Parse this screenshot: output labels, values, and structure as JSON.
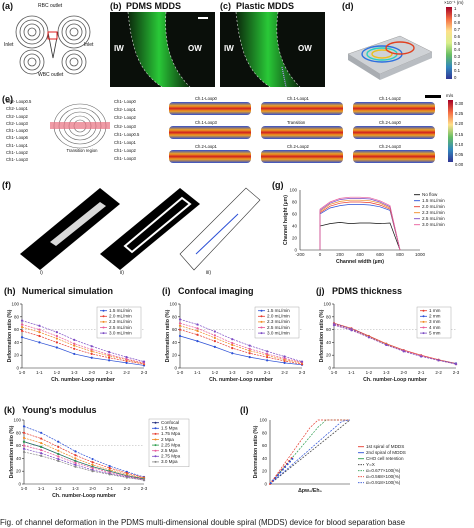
{
  "panels": {
    "a": {
      "label": "(a)",
      "rbc": "RBC outlet",
      "inlet_l": "Inlet",
      "inlet_r": "Inlet",
      "wbc": "WBC outlet"
    },
    "b": {
      "label": "(b)",
      "title": "PDMS MDDS",
      "iw": "IW",
      "ow": "OW"
    },
    "c": {
      "label": "(c)",
      "title": "Plastic MDDS",
      "iw": "IW",
      "ow": "OW"
    },
    "d": {
      "label": "(d)",
      "scale_unit": "×10⁻¹ (m)",
      "ticks": [
        "1",
        "0.9",
        "0.8",
        "0.7",
        "0.6",
        "0.5",
        "0.4",
        "0.3",
        "0.2",
        "0.1",
        "0"
      ]
    },
    "e": {
      "label": "(e)",
      "unit": "m/s",
      "left_labels": [
        "Ch2- Loop0.5",
        "Ch2- Loop1",
        "Ch2- Loop2",
        "Ch2- Loop3",
        "Ch1- Loop0",
        "Ch1- Loop6",
        "Ch1- Loop1",
        "Ch1- Loop2",
        "Ch1- Loop3"
      ],
      "right_labels": [
        "Ch1- Loop0",
        "Ch2- Loop1",
        "Ch2- Loop2",
        "Ch2- Loop3",
        "Ch1- Loop0.5",
        "Ch1- Loop1",
        "Ch1- Loop2",
        "Ch1- Loop3"
      ],
      "region": "Transition region",
      "cells": [
        "Ch.1-Loop0",
        "Ch.1-Loop1",
        "Ch.1-Loop2",
        "Ch.1-Loop3",
        "Transition",
        "Ch.2-Loop0",
        "Ch.2-Loop1",
        "Ch.2-Loop2",
        "Ch.2-Loop3"
      ],
      "scale_ticks": [
        "0.30",
        "0.25",
        "0.20",
        "0.15",
        "0.10",
        "0.05",
        "0.00"
      ]
    },
    "f": {
      "label": "(f)",
      "sub": [
        "i)",
        "ii)",
        "iii)"
      ]
    },
    "g": {
      "label": "(g)",
      "ylabel": "Channel height (µm)",
      "xlabel": "Channel width (µm)",
      "legend": [
        "No flow",
        "1.5 mL/min",
        "2.0 mL/min",
        "2.3 mL/min",
        "2.5 mL/min",
        "3.0 mL/min"
      ],
      "xticks": [
        "-200",
        "0",
        "200",
        "400",
        "600",
        "800",
        "1000"
      ],
      "yticks": [
        "0",
        "20",
        "40",
        "60",
        "80",
        "100"
      ]
    },
    "h": {
      "label": "(h)",
      "title": "Numerical simulation",
      "legend": [
        "1.5 mL/min",
        "2.0 mL/min",
        "2.3 mL/min",
        "2.5 mL/min",
        "3.0 mL/min"
      ]
    },
    "i": {
      "label": "(i)",
      "title": "Confocal imaging",
      "legend": [
        "1.5 mL/min",
        "2.0 mL/min",
        "2.3 mL/min",
        "2.5 mL/min",
        "3.0 mL/min"
      ]
    },
    "j": {
      "label": "(j)",
      "title": "PDMS thickness",
      "legend": [
        "1 mm",
        "2 mm",
        "3 mm",
        "4 mm",
        "5 mm"
      ]
    },
    "k": {
      "label": "(k)",
      "title": "Young's modulus",
      "legend": [
        "Confocal",
        "1.5 Mpa",
        "1.75 Mpa",
        "2 Mpa",
        "2.25 Mpa",
        "2.5 Mpa",
        "2.75 Mpa",
        "3.0 Mpa"
      ]
    },
    "l": {
      "label": "(l)",
      "ylabel": "Deformation ratio (%)",
      "xlabel": "Δpw₀/Eh₀",
      "legend": [
        "1st spiral of MDDS",
        "2nd spiral of MDDS",
        "CHO cell retention",
        "Y=X",
        "α=0.677×100(%)",
        "α=0.568×100(%)",
        "α=0.918×100(%)"
      ],
      "yticks": [
        "0",
        "20",
        "40",
        "60",
        "80",
        "100"
      ]
    }
  },
  "common": {
    "ylabel": "Deformation ratio (%)",
    "xlabel": "Ch. number-Loop number",
    "xticks": [
      "1-0",
      "1-1",
      "1-2",
      "1-3",
      "2-0",
      "2-1",
      "2-2",
      "2-3"
    ],
    "yticks": [
      "0",
      "20",
      "40",
      "60",
      "80",
      "100"
    ]
  },
  "colors": {
    "red": "#e63b2e",
    "blue": "#2b4fd6",
    "orange": "#f08a24",
    "pink": "#e85c9a",
    "purple": "#7c4bc4",
    "green": "#2e9e4f",
    "navy": "#1f2a7a",
    "gray": "#888888"
  },
  "chart_data": [
    {
      "type": "line",
      "title": "Numerical simulation",
      "xlabel": "Ch. number-Loop number",
      "ylabel": "Deformation ratio (%)",
      "ylim": [
        0,
        100
      ],
      "categories": [
        "1-0",
        "1-1",
        "1-2",
        "1-3",
        "2-0",
        "2-1",
        "2-2",
        "2-3"
      ],
      "series": [
        {
          "name": "1.5 mL/min",
          "values": [
            48,
            40,
            32,
            22,
            16,
            12,
            8,
            4
          ]
        },
        {
          "name": "2.0 mL/min",
          "values": [
            58,
            50,
            40,
            30,
            22,
            16,
            11,
            6
          ]
        },
        {
          "name": "2.3 mL/min",
          "values": [
            64,
            56,
            46,
            35,
            26,
            19,
            13,
            7
          ]
        },
        {
          "name": "2.5 mL/min",
          "values": [
            68,
            60,
            50,
            38,
            29,
            21,
            14,
            8
          ]
        },
        {
          "name": "3.0 mL/min",
          "values": [
            74,
            66,
            56,
            44,
            34,
            25,
            17,
            10
          ]
        }
      ]
    },
    {
      "type": "line",
      "title": "Confocal imaging",
      "xlabel": "Ch. number-Loop number",
      "ylabel": "Deformation ratio (%)",
      "ylim": [
        0,
        100
      ],
      "categories": [
        "1-0",
        "1-1",
        "1-2",
        "1-3",
        "2-0",
        "2-1",
        "2-2",
        "2-3"
      ],
      "series": [
        {
          "name": "1.5 mL/min",
          "values": [
            50,
            42,
            33,
            23,
            17,
            12,
            8,
            5
          ]
        },
        {
          "name": "2.0 mL/min",
          "values": [
            60,
            52,
            42,
            31,
            23,
            17,
            11,
            6
          ]
        },
        {
          "name": "2.3 mL/min",
          "values": [
            66,
            58,
            47,
            36,
            27,
            20,
            13,
            8
          ]
        },
        {
          "name": "2.5 mL/min",
          "values": [
            70,
            62,
            51,
            39,
            30,
            22,
            15,
            9
          ]
        },
        {
          "name": "3.0 mL/min",
          "values": [
            76,
            68,
            57,
            45,
            35,
            26,
            18,
            10
          ]
        }
      ]
    },
    {
      "type": "line",
      "title": "PDMS thickness",
      "xlabel": "Ch. number-Loop number",
      "ylabel": "Deformation ratio (%)",
      "ylim": [
        0,
        100
      ],
      "categories": [
        "1-0",
        "1-1",
        "1-2",
        "1-3",
        "2-0",
        "2-1",
        "2-2",
        "2-3"
      ],
      "series": [
        {
          "name": "1 mm",
          "values": [
            70,
            62,
            50,
            38,
            28,
            20,
            13,
            7
          ]
        },
        {
          "name": "2 mm",
          "values": [
            69,
            61,
            49,
            37,
            27,
            19,
            12,
            7
          ]
        },
        {
          "name": "3 mm",
          "values": [
            68,
            60,
            49,
            37,
            27,
            19,
            12,
            6
          ]
        },
        {
          "name": "4 mm",
          "values": [
            68,
            60,
            48,
            36,
            27,
            19,
            12,
            6
          ]
        },
        {
          "name": "5 mm",
          "values": [
            67,
            59,
            48,
            36,
            26,
            18,
            12,
            6
          ]
        }
      ]
    },
    {
      "type": "line",
      "title": "Young's modulus",
      "xlabel": "Ch. number-Loop number",
      "ylabel": "Deformation ratio (%)",
      "ylim": [
        0,
        100
      ],
      "categories": [
        "1-0",
        "1-1",
        "1-2",
        "1-3",
        "2-0",
        "2-1",
        "2-2",
        "2-3"
      ],
      "series": [
        {
          "name": "Confocal",
          "values": [
            66,
            58,
            47,
            36,
            27,
            20,
            13,
            8
          ]
        },
        {
          "name": "1.5 Mpa",
          "values": [
            90,
            80,
            66,
            51,
            39,
            28,
            19,
            11
          ]
        },
        {
          "name": "1.75 Mpa",
          "values": [
            80,
            71,
            58,
            45,
            34,
            25,
            17,
            10
          ]
        },
        {
          "name": "2 Mpa",
          "values": [
            72,
            64,
            52,
            40,
            30,
            22,
            15,
            9
          ]
        },
        {
          "name": "2.25 Mpa",
          "values": [
            66,
            58,
            47,
            36,
            27,
            20,
            13,
            8
          ]
        },
        {
          "name": "2.5 Mpa",
          "values": [
            60,
            53,
            43,
            33,
            25,
            18,
            12,
            7
          ]
        },
        {
          "name": "2.75 Mpa",
          "values": [
            55,
            48,
            39,
            30,
            22,
            16,
            11,
            6
          ]
        },
        {
          "name": "3.0 Mpa",
          "values": [
            50,
            44,
            36,
            27,
            20,
            15,
            10,
            6
          ]
        }
      ]
    },
    {
      "type": "line",
      "xlabel": "Δpw₀/Eh₀",
      "ylabel": "Deformation ratio (%)",
      "ylim": [
        0,
        100
      ],
      "x": [
        0,
        0.1,
        0.2,
        0.3,
        0.4,
        0.5,
        0.6,
        0.7,
        0.8,
        0.9,
        1.0
      ],
      "series": [
        {
          "name": "Y=X",
          "values": [
            0,
            10,
            20,
            30,
            40,
            50,
            60,
            70,
            80,
            90,
            100
          ]
        },
        {
          "name": "α=0.677×100(%)",
          "values": [
            0,
            14.8,
            29.5,
            44.3,
            59.1,
            73.9,
            88.6,
            100,
            100,
            100,
            100
          ]
        },
        {
          "name": "α=0.568×100(%)",
          "values": [
            0,
            17.6,
            35.2,
            52.8,
            70.4,
            88,
            100,
            100,
            100,
            100,
            100
          ]
        },
        {
          "name": "α=0.918×100(%)",
          "values": [
            0,
            10.9,
            21.8,
            32.7,
            43.6,
            54.5,
            65.4,
            76.3,
            87.1,
            98,
            100
          ]
        }
      ]
    },
    {
      "type": "line",
      "xlabel": "Channel width (µm)",
      "ylabel": "Channel height (µm)",
      "ylim": [
        0,
        100
      ],
      "xlim": [
        -200,
        1000
      ],
      "x": [
        0,
        100,
        200,
        300,
        400,
        500,
        600,
        700,
        800
      ],
      "series": [
        {
          "name": "No flow",
          "values": [
            40,
            44,
            46,
            44,
            45,
            45,
            44,
            45,
            0
          ]
        },
        {
          "name": "1.5 mL/min",
          "values": [
            60,
            70,
            74,
            76,
            76,
            75,
            72,
            66,
            0
          ]
        },
        {
          "name": "2.0 mL/min",
          "values": [
            62,
            73,
            78,
            80,
            80,
            79,
            75,
            68,
            0
          ]
        },
        {
          "name": "2.3 mL/min",
          "values": [
            64,
            76,
            81,
            83,
            83,
            82,
            78,
            70,
            0
          ]
        },
        {
          "name": "2.5 mL/min",
          "values": [
            66,
            78,
            84,
            86,
            86,
            85,
            80,
            72,
            0
          ]
        },
        {
          "name": "3.0 mL/min",
          "values": [
            68,
            80,
            86,
            88,
            88,
            87,
            82,
            74,
            0
          ]
        }
      ]
    }
  ],
  "caption": "Fig. of channel deformation in the PDMS multi-dimensional double spiral (MDDS) device for blood separation base"
}
